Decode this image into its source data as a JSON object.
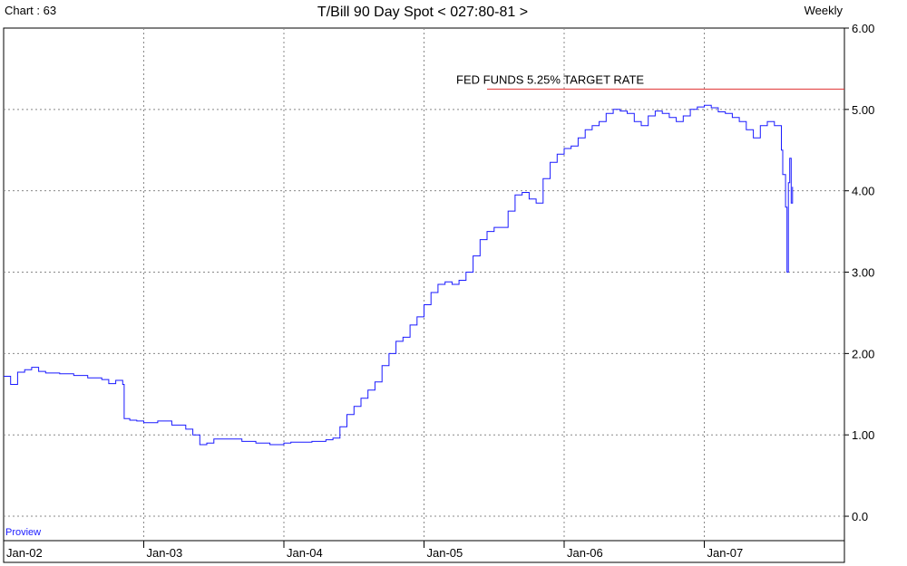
{
  "header": {
    "chart_id": "Chart : 63",
    "title": "T/Bill 90 Day Spot < 027:80-81 >",
    "period": "Weekly"
  },
  "watermark": "Proview",
  "colors": {
    "series": "#1a1aff",
    "annotation_line": "#e03030",
    "grid": "#888888",
    "frame": "#000000"
  },
  "chart_data": {
    "type": "line",
    "title": "T/Bill 90 Day Spot < 027:80-81 >",
    "xlabel": "",
    "ylabel": "",
    "x_ticks": [
      "Jan-02",
      "Jan-03",
      "Jan-04",
      "Jan-05",
      "Jan-06",
      "Jan-07"
    ],
    "y_ticks": [
      "0.0",
      "1.00",
      "2.00",
      "3.00",
      "4.00",
      "5.00",
      "6.00"
    ],
    "xlim": [
      2002.0,
      2008.0
    ],
    "ylim": [
      -0.3,
      6.0
    ],
    "y_axis_side": "right",
    "grid": true,
    "annotations": [
      {
        "text": "FED FUNDS 5.25% TARGET RATE",
        "y": 5.25,
        "x_start": 2005.45,
        "x_end": 2008.0
      }
    ],
    "series": [
      {
        "values_x": [
          2002.0,
          2002.05,
          2002.1,
          2002.15,
          2002.2,
          2002.25,
          2002.3,
          2002.4,
          2002.5,
          2002.6,
          2002.7,
          2002.75,
          2002.8,
          2002.85,
          2002.86,
          2002.9,
          2002.95,
          2003.0,
          2003.1,
          2003.2,
          2003.3,
          2003.35,
          2003.4,
          2003.45,
          2003.5,
          2003.6,
          2003.7,
          2003.8,
          2003.9,
          2004.0,
          2004.05,
          2004.1,
          2004.2,
          2004.3,
          2004.35,
          2004.4,
          2004.45,
          2004.5,
          2004.55,
          2004.6,
          2004.65,
          2004.7,
          2004.75,
          2004.8,
          2004.85,
          2004.9,
          2004.95,
          2005.0,
          2005.05,
          2005.1,
          2005.15,
          2005.2,
          2005.25,
          2005.3,
          2005.35,
          2005.4,
          2005.45,
          2005.5,
          2005.55,
          2005.6,
          2005.65,
          2005.7,
          2005.75,
          2005.8,
          2005.85,
          2005.9,
          2005.95,
          2006.0,
          2006.05,
          2006.1,
          2006.15,
          2006.2,
          2006.25,
          2006.3,
          2006.35,
          2006.4,
          2006.45,
          2006.5,
          2006.55,
          2006.6,
          2006.65,
          2006.7,
          2006.75,
          2006.8,
          2006.85,
          2006.9,
          2006.95,
          2007.0,
          2007.05,
          2007.1,
          2007.15,
          2007.2,
          2007.25,
          2007.3,
          2007.35,
          2007.4,
          2007.45,
          2007.5,
          2007.55,
          2007.56,
          2007.58,
          2007.59,
          2007.6,
          2007.61,
          2007.62,
          2007.63
        ],
        "values_y": [
          1.72,
          1.62,
          1.77,
          1.8,
          1.83,
          1.78,
          1.76,
          1.75,
          1.73,
          1.7,
          1.68,
          1.63,
          1.67,
          1.62,
          1.2,
          1.18,
          1.17,
          1.15,
          1.17,
          1.12,
          1.07,
          1.0,
          0.88,
          0.9,
          0.95,
          0.95,
          0.92,
          0.9,
          0.88,
          0.9,
          0.91,
          0.91,
          0.92,
          0.94,
          0.96,
          1.1,
          1.25,
          1.35,
          1.45,
          1.55,
          1.65,
          1.85,
          2.0,
          2.15,
          2.2,
          2.35,
          2.45,
          2.6,
          2.75,
          2.85,
          2.88,
          2.85,
          2.9,
          3.0,
          3.2,
          3.4,
          3.5,
          3.55,
          3.55,
          3.75,
          3.95,
          3.98,
          3.9,
          3.85,
          4.15,
          4.35,
          4.45,
          4.52,
          4.55,
          4.65,
          4.75,
          4.8,
          4.85,
          4.95,
          5.0,
          4.98,
          4.95,
          4.85,
          4.8,
          4.92,
          4.98,
          4.95,
          4.9,
          4.85,
          4.92,
          5.0,
          5.03,
          5.05,
          5.02,
          4.97,
          4.95,
          4.9,
          4.85,
          4.75,
          4.65,
          4.8,
          4.85,
          4.8,
          4.5,
          4.2,
          3.8,
          3.0,
          4.1,
          4.4,
          3.85,
          4.05
        ]
      }
    ]
  }
}
